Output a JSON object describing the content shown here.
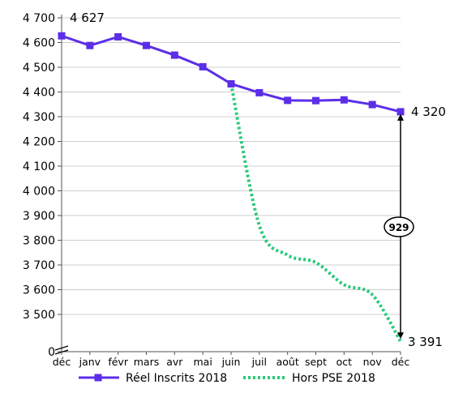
{
  "chart_data": {
    "type": "line",
    "categories": [
      "déc",
      "janv",
      "févr",
      "mars",
      "avr",
      "mai",
      "juin",
      "juil",
      "août",
      "sept",
      "oct",
      "nov",
      "déc"
    ],
    "y_tick_labels": [
      "4 700",
      "4 600",
      "4 500",
      "4 400",
      "4 300",
      "4 200",
      "4 100",
      "4 000",
      "3 900",
      "3 800",
      "3 700",
      "3 600",
      "3 500",
      "0"
    ],
    "ylim": [
      3400,
      4700
    ],
    "axis_break": true,
    "grid": "horizontal",
    "legend_position": "bottom",
    "series": [
      {
        "name": "Réel Inscrits 2018",
        "color": "#5b2ee8",
        "style": "solid-square-markers",
        "values": [
          4627,
          4588,
          4623,
          4588,
          4549,
          4502,
          4433,
          4397,
          4366,
          4365,
          4368,
          4349,
          4320
        ]
      },
      {
        "name": "Hors PSE 2018",
        "color": "#29c97a",
        "style": "dotted",
        "values": [
          null,
          null,
          null,
          null,
          null,
          null,
          4433,
          3860,
          3740,
          3710,
          3620,
          3580,
          3391
        ]
      }
    ],
    "annotations": {
      "start_value": "4 627",
      "end_value_top": "4 320",
      "end_value_bottom": "3 391",
      "gap": "929"
    }
  }
}
